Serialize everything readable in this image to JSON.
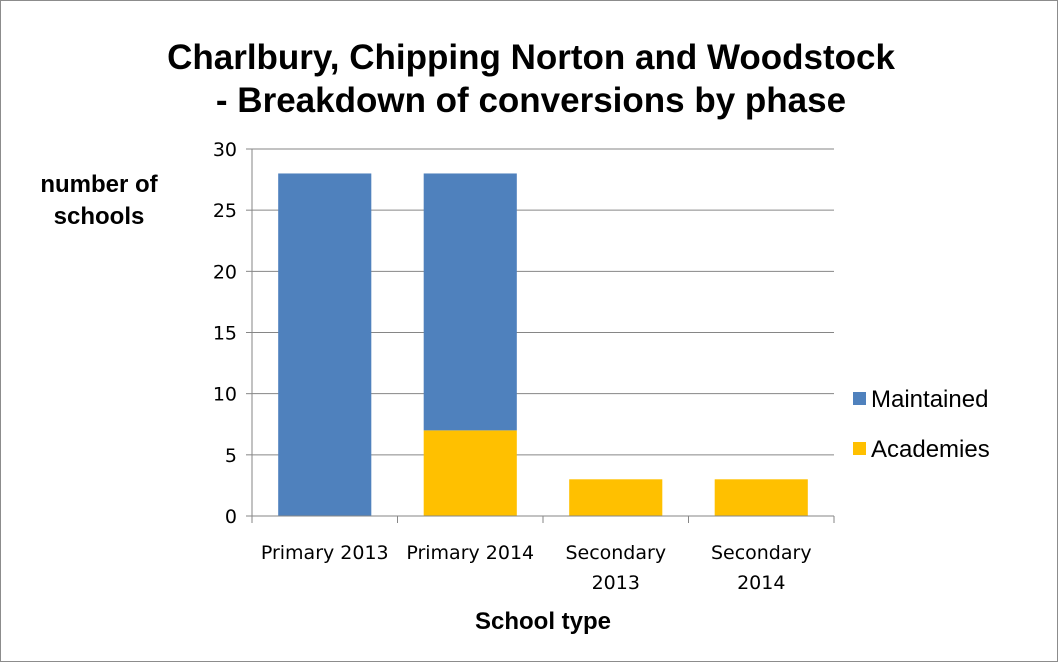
{
  "chart_data": {
    "type": "bar",
    "stacked": true,
    "title_lines": [
      "Charlbury, Chipping Norton and Woodstock",
      "- Breakdown of conversions by phase"
    ],
    "ylabel_lines": [
      "number of",
      "schools"
    ],
    "xlabel": "School type",
    "categories": [
      [
        "Primary 2013"
      ],
      [
        "Primary 2014"
      ],
      [
        "Secondary",
        "2013"
      ],
      [
        "Secondary",
        "2014"
      ]
    ],
    "series": [
      {
        "name": "Academies",
        "color": "#ffc000",
        "values": [
          0,
          7,
          3,
          3
        ]
      },
      {
        "name": "Maintained",
        "color": "#4f81bd",
        "values": [
          28,
          21,
          0,
          0
        ]
      }
    ],
    "ylim": [
      0,
      30
    ],
    "yticks": [
      0,
      5,
      10,
      15,
      20,
      25,
      30
    ],
    "grid": true,
    "legend_position": "right",
    "legend_order": [
      "Maintained",
      "Academies"
    ],
    "gridline_color": "#868686"
  }
}
